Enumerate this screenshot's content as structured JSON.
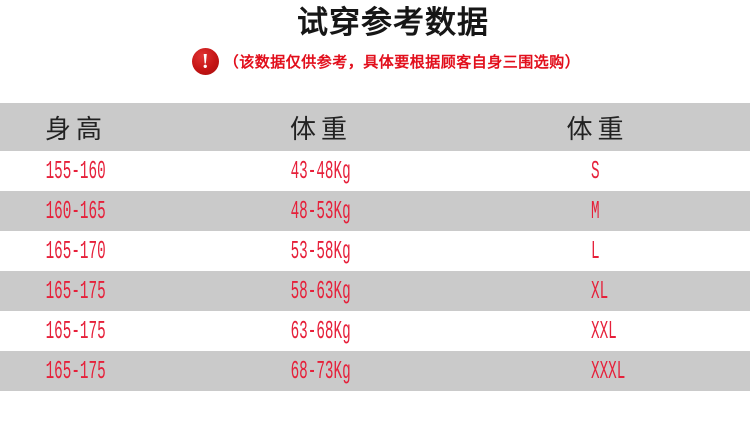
{
  "title": "试穿参考数据",
  "notice": {
    "icon_glyph": "!",
    "text": "（该数据仅供参考，具体要根据顾客自身三围选购）"
  },
  "colors": {
    "data_red": "#e6203a",
    "notice_red": "#e20f1c",
    "icon_red": "#c41414",
    "stripe_gray": "#cacaca",
    "title_black": "#161616"
  },
  "table": {
    "headers": [
      "身高",
      "体重",
      "体重"
    ],
    "rows": [
      {
        "height": "155-160",
        "weight": "43-48Kg",
        "size": "S"
      },
      {
        "height": "160-165",
        "weight": "48-53Kg",
        "size": "M"
      },
      {
        "height": "165-170",
        "weight": "53-58Kg",
        "size": "L"
      },
      {
        "height": "165-175",
        "weight": "58-63Kg",
        "size": "XL"
      },
      {
        "height": "165-175",
        "weight": "63-68Kg",
        "size": "XXL"
      },
      {
        "height": "165-175",
        "weight": "68-73Kg",
        "size": "XXXL"
      }
    ]
  },
  "chart_data": {
    "type": "table",
    "title": "试穿参考数据",
    "note": "（该数据仅供参考，具体要根据顾客自身三围选购）",
    "columns": [
      "身高",
      "体重",
      "体重"
    ],
    "rows": [
      [
        "155-160",
        "43-48Kg",
        "S"
      ],
      [
        "160-165",
        "48-53Kg",
        "M"
      ],
      [
        "165-170",
        "53-58Kg",
        "L"
      ],
      [
        "165-175",
        "58-63Kg",
        "XL"
      ],
      [
        "165-175",
        "63-68Kg",
        "XXL"
      ],
      [
        "165-175",
        "68-73Kg",
        "XXXL"
      ]
    ],
    "layout": {
      "stripe_rows": true,
      "stripe_color": "#cacaca",
      "text_color": "#e6203a"
    }
  }
}
